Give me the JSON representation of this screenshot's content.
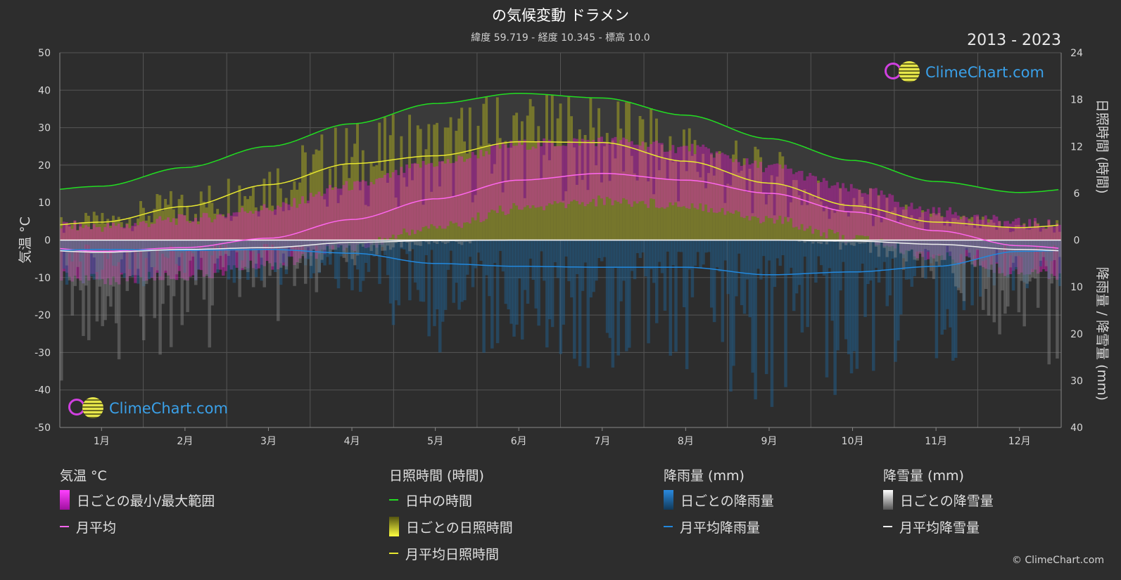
{
  "header": {
    "title": "の気候変動 ドラメン",
    "subtitle": "緯度 59.719 - 経度 10.345 - 標高 10.0",
    "years": "2013 - 2023"
  },
  "logo": {
    "text": "ClimeChart.com"
  },
  "copyright": "© ClimeChart.com",
  "colors": {
    "background": "#2d2d2d",
    "daylight": "#22dd22",
    "sunshine_avg": "#e8e830",
    "temp_avg": "#ff66ee",
    "rain_avg": "#2288dd",
    "snow_avg": "#eeeeee",
    "temp_range": "#e020c0",
    "sunshine_daily": "#a8a820",
    "rain_daily": "#1f5f8f",
    "snow_daily": "#8a8a8a"
  },
  "legend": {
    "temp": {
      "heading": "気温 °C",
      "range": "日ごとの最小/最大範囲",
      "avg": "月平均"
    },
    "sun": {
      "heading": "日照時間 (時間)",
      "daylight": "日中の時間",
      "daily": "日ごとの日照時間",
      "avg": "月平均日照時間"
    },
    "rain": {
      "heading": "降雨量 (mm)",
      "daily": "日ごとの降雨量",
      "avg": "月平均降雨量"
    },
    "snow": {
      "heading": "降雪量 (mm)",
      "daily": "日ごとの降雪量",
      "avg": "月平均降雪量"
    }
  },
  "chart_data": {
    "type": "line",
    "categories": [
      "1月",
      "2月",
      "3月",
      "4月",
      "5月",
      "6月",
      "7月",
      "8月",
      "9月",
      "10月",
      "11月",
      "12月"
    ],
    "y_left": {
      "label": "気温 °C",
      "ticks": [
        50,
        40,
        30,
        20,
        10,
        0,
        -10,
        -20,
        -30,
        -40,
        -50
      ],
      "ylim": [
        -50,
        50
      ]
    },
    "y_right_top": {
      "label": "日照時間 (時間)",
      "ticks": [
        24,
        18,
        12,
        6,
        0
      ],
      "ylim": [
        0,
        24
      ]
    },
    "y_right_bottom": {
      "label": "降雨量 / 降雪量 (mm)",
      "ticks": [
        0,
        10,
        20,
        30,
        40
      ],
      "ylim": [
        0,
        40
      ]
    },
    "grid": true,
    "series": [
      {
        "key": "daylight",
        "axis": "sun",
        "values": [
          6.9,
          9.3,
          12.0,
          14.9,
          17.5,
          18.8,
          18.2,
          16.0,
          13.0,
          10.2,
          7.5,
          6.1
        ]
      },
      {
        "key": "sunshine_avg",
        "axis": "sun",
        "values": [
          2.3,
          4.3,
          7.1,
          9.8,
          10.8,
          12.6,
          12.5,
          10.1,
          7.3,
          4.4,
          2.3,
          1.6
        ]
      },
      {
        "key": "temp_avg",
        "axis": "temp",
        "values": [
          -3.0,
          -2.0,
          0.5,
          5.5,
          11.0,
          16.0,
          17.8,
          16.0,
          12.5,
          7.5,
          2.5,
          -1.5
        ]
      },
      {
        "key": "rain_avg",
        "axis": "precip",
        "values": [
          2.0,
          2.2,
          2.0,
          2.8,
          5.0,
          5.6,
          5.8,
          5.8,
          7.4,
          6.8,
          5.6,
          2.4
        ]
      },
      {
        "key": "snow_avg",
        "axis": "precip",
        "values": [
          2.6,
          2.0,
          1.6,
          0.5,
          0.1,
          0.0,
          0.0,
          0.0,
          0.0,
          0.2,
          0.9,
          2.0
        ]
      }
    ],
    "temp_daily_range": {
      "min": [
        -9,
        -8,
        -5,
        0,
        5,
        10,
        12,
        11,
        7,
        2,
        -3,
        -7
      ],
      "max": [
        2,
        4,
        7,
        13,
        19,
        24,
        25,
        23,
        18,
        12,
        6,
        3
      ]
    }
  }
}
